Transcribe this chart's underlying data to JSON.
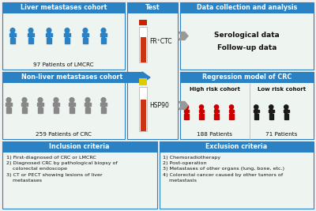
{
  "blue_header": "#2a82c4",
  "light_bg": "#eef4f0",
  "figure_bg": "#f0f0f0",
  "border_color": "#2a82c4",
  "arrow_color": "#999999",
  "red_person": "#cc0000",
  "black_person": "#1a1a1a",
  "blue_person": "#2a82c4",
  "gray_person": "#888888",
  "title_liver": "Liver metastases cohort",
  "title_test": "Test",
  "title_data": "Data collection and analysis",
  "title_nonliver": "Non-liver metastases cohort",
  "title_regression": "Regression model of CRC",
  "title_high": "High risk cohort",
  "title_low": "Low risk cohort",
  "title_inclusion": "Inclusion criteria",
  "title_exclusion": "Exclusion criteria",
  "label_97": "97 Patients of LMCRC",
  "label_259": "259 Patients of CRC",
  "label_188": "188 Patients",
  "label_71": "71 Patients",
  "label_frcrc": "FR⁺CTC",
  "label_hsp90": "HSP90",
  "data_collection_text": "Serological data\nFollow-up data",
  "inclusion_items": [
    "1) First-diagnosed of CRC or LMCRC",
    "2) Diagnosed CRC by pathological biopsy of\n    colorectal endoscope",
    "3) CT or PECT showing lesions of liver\n    metastases"
  ],
  "exclusion_items": [
    "1) Chemoradiotherapy",
    "2) Post-operation",
    "3) Metastases of other organs (lung, bone, etc.)",
    "4) Colorectal cancer caused by other tumors of\n    metastasis"
  ]
}
